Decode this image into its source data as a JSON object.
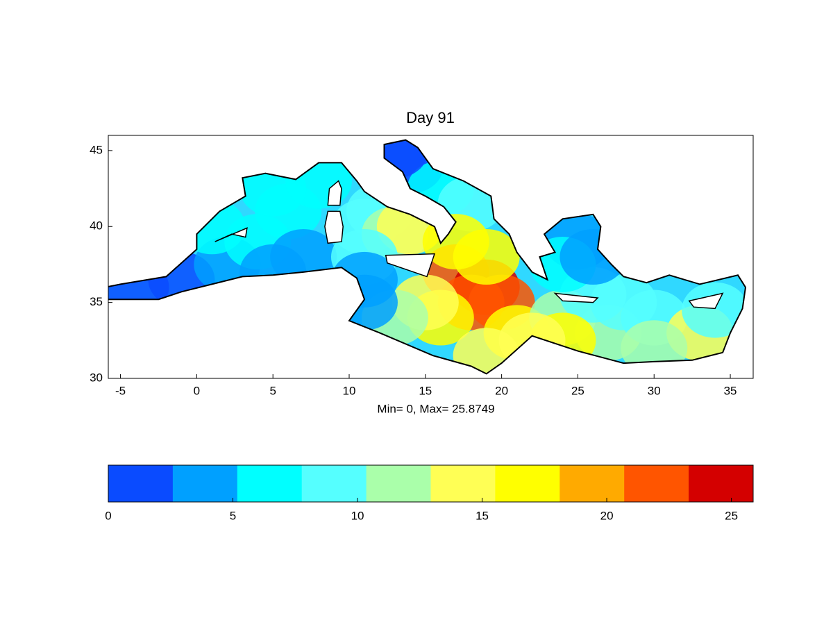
{
  "chart_data": {
    "type": "map",
    "title": "Day 91",
    "xlabel": "Min= 0,  Max= 25.8749",
    "xlim": [
      -5.8,
      36.5
    ],
    "ylim": [
      30,
      46
    ],
    "xticks": [
      -5,
      0,
      5,
      10,
      15,
      20,
      25,
      30,
      35
    ],
    "yticks": [
      30,
      35,
      40,
      45
    ],
    "field": {
      "x": [
        -4,
        -1,
        2,
        4,
        1,
        6,
        7,
        5,
        8,
        5,
        11,
        12,
        13,
        14,
        11,
        14,
        16,
        18,
        13,
        17,
        19,
        20,
        18,
        17,
        19,
        16,
        21,
        15,
        13,
        11,
        11,
        24,
        27,
        30,
        33,
        34,
        26,
        28,
        30,
        24,
        25,
        24,
        26,
        19,
        22
      ],
      "y": [
        36,
        36.5,
        37.5,
        39,
        40,
        41,
        38,
        37,
        43,
        42.5,
        40,
        41,
        39.5,
        40,
        38,
        44,
        42.5,
        41.5,
        45,
        37,
        36,
        35,
        35,
        39,
        38,
        34,
        33,
        35,
        34,
        35,
        36.5,
        34,
        33,
        34,
        33,
        34.5,
        35.5,
        35,
        32,
        32.5,
        39,
        37.5,
        38,
        31.5,
        32.5
      ],
      "values": [
        2,
        2,
        3,
        6,
        6,
        6,
        5,
        3,
        7,
        6,
        9,
        8,
        12,
        13,
        8,
        2,
        6,
        8,
        1,
        22,
        24,
        23,
        21,
        16,
        18,
        17,
        16,
        14,
        12,
        3,
        5,
        12,
        11,
        9,
        15,
        10,
        8,
        9,
        12,
        16,
        3,
        6,
        5,
        15,
        14
      ]
    },
    "colorbar": {
      "clim": [
        0,
        25.8749
      ],
      "ticks": [
        0,
        5,
        10,
        15,
        20,
        25
      ],
      "colors": [
        "#0a4bff",
        "#00a0ff",
        "#00ffff",
        "#55ffff",
        "#aaffaa",
        "#ffff55",
        "#ffff00",
        "#ffaa00",
        "#ff5500",
        "#d40000"
      ]
    }
  }
}
